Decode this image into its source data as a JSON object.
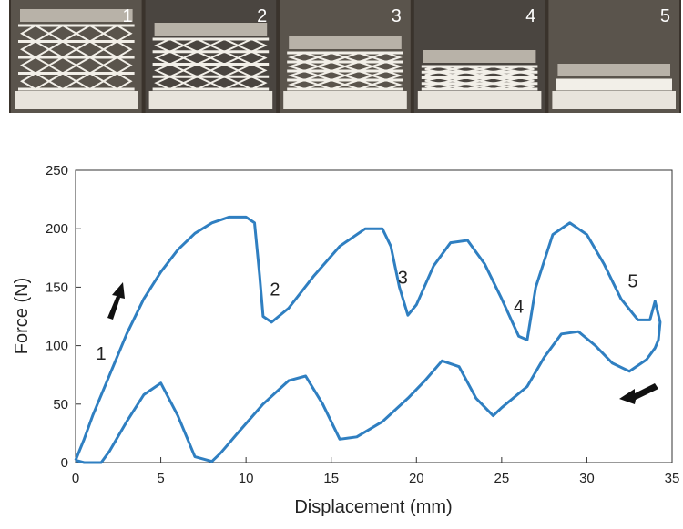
{
  "photo_strip": {
    "labels": [
      "1",
      "2",
      "3",
      "4",
      "5"
    ]
  },
  "chart_data": {
    "type": "line",
    "xlabel": "Displacement (mm)",
    "ylabel": "Force (N)",
    "xlim": [
      0,
      35
    ],
    "ylim": [
      0,
      250
    ],
    "xticks": [
      0,
      5,
      10,
      15,
      20,
      25,
      30,
      35
    ],
    "yticks": [
      0,
      50,
      100,
      150,
      200,
      250
    ],
    "annotations": [
      "1",
      "2",
      "3",
      "4",
      "5"
    ],
    "series": [
      {
        "color": "#2f7fc1",
        "x": [
          0,
          0.5,
          1,
          2,
          3,
          4,
          5,
          6,
          7,
          8,
          9,
          10,
          10.5,
          10.8,
          11,
          11.5,
          12.5,
          14,
          15.5,
          17,
          18,
          18.5,
          19,
          19.5,
          20,
          21,
          22,
          23,
          24,
          25,
          26,
          26.5,
          27,
          28,
          29,
          30,
          31,
          32,
          33,
          33.7,
          34,
          34.3,
          34.2,
          34,
          33.5,
          32.5,
          31.5,
          30.5,
          29.5,
          28.5,
          27.5,
          26.5,
          25,
          24.5,
          23.5,
          22.5,
          21.5,
          20.5,
          19.5,
          18,
          16.5,
          15.5,
          14.5,
          13.5,
          12.5,
          11,
          9.5,
          8.5,
          8,
          7,
          6,
          5,
          4,
          3,
          2,
          1.5,
          0.5,
          0
        ],
        "values": [
          2,
          20,
          40,
          75,
          110,
          140,
          163,
          182,
          196,
          205,
          210,
          210,
          205,
          160,
          125,
          120,
          132,
          160,
          185,
          200,
          200,
          185,
          150,
          126,
          135,
          168,
          188,
          190,
          170,
          140,
          108,
          105,
          150,
          195,
          205,
          195,
          170,
          140,
          122,
          122,
          138,
          120,
          105,
          98,
          88,
          78,
          85,
          100,
          112,
          110,
          90,
          65,
          47,
          40,
          55,
          82,
          87,
          70,
          55,
          35,
          22,
          20,
          50,
          74,
          70,
          50,
          25,
          8,
          1,
          5,
          40,
          68,
          58,
          35,
          10,
          0,
          0,
          2
        ]
      }
    ]
  }
}
